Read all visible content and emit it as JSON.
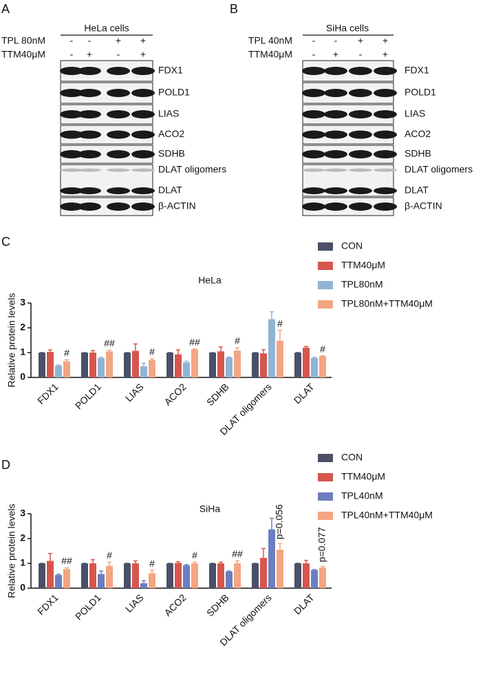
{
  "blots": [
    {
      "panel": "A",
      "header": "HeLa cells",
      "conditions": [
        {
          "label": "TPL 80nM",
          "marks": [
            "-",
            "-",
            "+",
            "+"
          ]
        },
        {
          "label": "TTM40μM",
          "marks": [
            "-",
            "+",
            "-",
            "+"
          ]
        }
      ],
      "boxes": [
        [
          "FDX1"
        ],
        [
          "POLD1"
        ],
        [
          "LIAS"
        ],
        [
          "ACO2"
        ],
        [
          "SDHB"
        ],
        [
          "DLAT oligomers",
          "DLAT"
        ],
        [
          "β-ACTIN"
        ]
      ]
    },
    {
      "panel": "B",
      "header": "SiHa cells",
      "conditions": [
        {
          "label": "TPL 40nM",
          "marks": [
            "-",
            "-",
            "+",
            "+"
          ]
        },
        {
          "label": "TTM40μM",
          "marks": [
            "-",
            "+",
            "-",
            "+"
          ]
        }
      ],
      "boxes": [
        [
          "FDX1"
        ],
        [
          "POLD1"
        ],
        [
          "LIAS"
        ],
        [
          "ACO2"
        ],
        [
          "SDHB"
        ],
        [
          "DLAT oligomers",
          "DLAT"
        ],
        [
          "β-ACTIN"
        ]
      ]
    }
  ],
  "chart_data": [
    {
      "type": "bar",
      "panel": "C",
      "title": "HeLa",
      "ylabel": "Relative protein levels",
      "categories": [
        "FDX1",
        "POLD1",
        "LIAS",
        "ACO2",
        "SDHB",
        "DLAT oligomers",
        "DLAT"
      ],
      "series": [
        {
          "name": "CON",
          "color": "#4b5068",
          "values": [
            1,
            1,
            1,
            1,
            1,
            1,
            1
          ],
          "errors": [
            0,
            0,
            0,
            0,
            0,
            0,
            0
          ]
        },
        {
          "name": "TTM40μM",
          "color": "#d6564d",
          "values": [
            1.03,
            1.0,
            1.07,
            0.93,
            1.05,
            0.97,
            1.2
          ],
          "errors": [
            0.08,
            0.08,
            0.28,
            0.18,
            0.18,
            0.15,
            0.05
          ]
        },
        {
          "name": "TPL80nM",
          "color": "#8fb4d6",
          "values": [
            0.47,
            0.78,
            0.45,
            0.6,
            0.8,
            2.35,
            0.78
          ],
          "errors": [
            0.03,
            0.03,
            0.12,
            0.05,
            0.02,
            0.3,
            0.03
          ]
        },
        {
          "name": "TPL80nM+TTM40μM",
          "color": "#f4a582",
          "values": [
            0.65,
            1.05,
            0.7,
            1.13,
            1.08,
            1.48,
            0.85
          ],
          "errors": [
            0.06,
            0.05,
            0.05,
            0.02,
            0.12,
            0.42,
            0.02
          ]
        }
      ],
      "annotations": [
        "#",
        "##",
        "#",
        "##",
        "#",
        "#",
        "#"
      ],
      "ylim": [
        0,
        3
      ],
      "yticks": [
        0,
        1,
        2,
        3
      ]
    },
    {
      "type": "bar",
      "panel": "D",
      "title": "SiHa",
      "ylabel": "Relative protein levels",
      "categories": [
        "FDX1",
        "POLD1",
        "LIAS",
        "ACO2",
        "SDHB",
        "DLAT oligomers",
        "DLAT"
      ],
      "series": [
        {
          "name": "CON",
          "color": "#4b5068",
          "values": [
            1,
            1,
            1,
            1,
            1,
            1,
            1
          ],
          "errors": [
            0,
            0,
            0,
            0,
            0,
            0,
            0
          ]
        },
        {
          "name": "TTM40μM",
          "color": "#d6564d",
          "values": [
            1.1,
            1.0,
            1.0,
            1.02,
            1.0,
            1.22,
            1.0
          ],
          "errors": [
            0.3,
            0.15,
            0.1,
            0.05,
            0.05,
            0.38,
            0.12
          ]
        },
        {
          "name": "TPL40nM",
          "color": "#6b7fc0",
          "values": [
            0.53,
            0.57,
            0.2,
            0.92,
            0.67,
            2.37,
            0.73
          ],
          "errors": [
            0.03,
            0.12,
            0.1,
            0.03,
            0.02,
            0.45,
            0.02
          ]
        },
        {
          "name": "TPL40nM+TTM40μM",
          "color": "#f4a582",
          "values": [
            0.77,
            0.9,
            0.6,
            1.0,
            1.0,
            1.55,
            0.83
          ],
          "errors": [
            0.05,
            0.15,
            0.12,
            0.05,
            0.1,
            0.25,
            0.05
          ]
        }
      ],
      "annotations": [
        "##",
        "#",
        "#",
        "#",
        "##",
        "p=0.056",
        "p=0.077"
      ],
      "ylim": [
        0,
        3
      ],
      "yticks": [
        0,
        1,
        2,
        3
      ]
    }
  ]
}
